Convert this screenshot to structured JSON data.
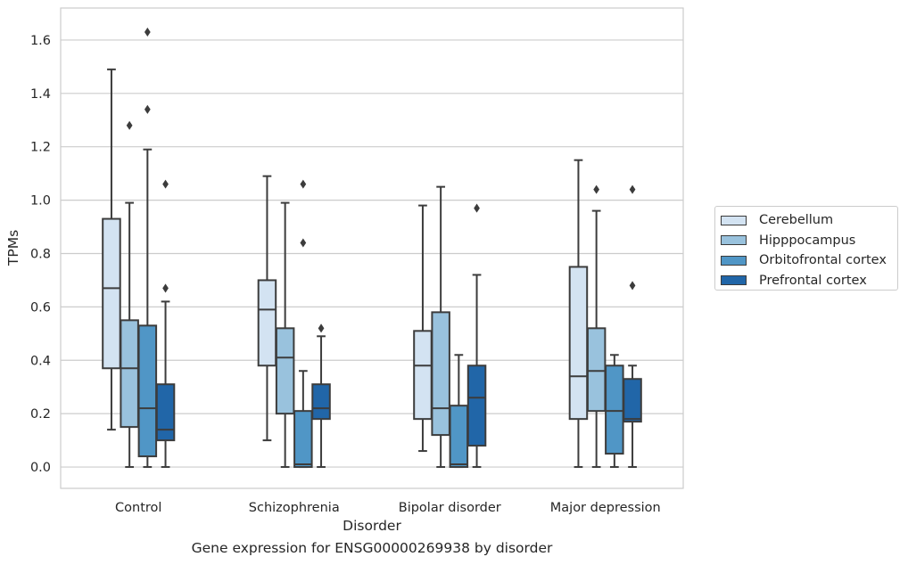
{
  "chart_data": {
    "type": "box",
    "xlabel": "Disorder",
    "ylabel": "TPMs",
    "ylim": [
      -0.08,
      1.72
    ],
    "yticks": [
      0.0,
      0.2,
      0.4,
      0.6,
      0.8,
      1.0,
      1.2,
      1.4,
      1.6
    ],
    "ytick_labels": [
      "0.0",
      "0.2",
      "0.4",
      "0.6",
      "0.8",
      "1.0",
      "1.2",
      "1.4",
      "1.6"
    ],
    "grid": "horizontal",
    "legend_position": "right",
    "categories": [
      "Control",
      "Schizophrenia",
      "Bipolar disorder",
      "Major depression"
    ],
    "series": [
      {
        "name": "Cerebellum",
        "color": "#d3e3f2",
        "boxes": [
          {
            "whislo": 0.14,
            "q1": 0.37,
            "med": 0.67,
            "q3": 0.93,
            "whishi": 1.49,
            "fliers": []
          },
          {
            "whislo": 0.1,
            "q1": 0.38,
            "med": 0.59,
            "q3": 0.7,
            "whishi": 1.09,
            "fliers": []
          },
          {
            "whislo": 0.06,
            "q1": 0.18,
            "med": 0.38,
            "q3": 0.51,
            "whishi": 0.98,
            "fliers": []
          },
          {
            "whislo": 0.0,
            "q1": 0.18,
            "med": 0.34,
            "q3": 0.75,
            "whishi": 1.15,
            "fliers": []
          }
        ]
      },
      {
        "name": "Hipppocampus",
        "color": "#99c2dd",
        "boxes": [
          {
            "whislo": 0.0,
            "q1": 0.15,
            "med": 0.37,
            "q3": 0.55,
            "whishi": 0.99,
            "fliers": [
              1.28
            ]
          },
          {
            "whislo": 0.0,
            "q1": 0.2,
            "med": 0.41,
            "q3": 0.52,
            "whishi": 0.99,
            "fliers": []
          },
          {
            "whislo": 0.0,
            "q1": 0.12,
            "med": 0.22,
            "q3": 0.58,
            "whishi": 1.05,
            "fliers": []
          },
          {
            "whislo": 0.0,
            "q1": 0.21,
            "med": 0.36,
            "q3": 0.52,
            "whishi": 0.96,
            "fliers": [
              1.04
            ]
          }
        ]
      },
      {
        "name": "Orbitofrontal cortex",
        "color": "#5096c6",
        "boxes": [
          {
            "whislo": 0.0,
            "q1": 0.04,
            "med": 0.22,
            "q3": 0.53,
            "whishi": 1.19,
            "fliers": [
              1.34,
              1.63
            ]
          },
          {
            "whislo": 0.0,
            "q1": 0.0,
            "med": 0.01,
            "q3": 0.21,
            "whishi": 0.36,
            "fliers": [
              0.84,
              1.06
            ]
          },
          {
            "whislo": 0.0,
            "q1": 0.0,
            "med": 0.01,
            "q3": 0.23,
            "whishi": 0.42,
            "fliers": []
          },
          {
            "whislo": 0.0,
            "q1": 0.05,
            "med": 0.21,
            "q3": 0.38,
            "whishi": 0.42,
            "fliers": []
          }
        ]
      },
      {
        "name": "Prefrontal cortex",
        "color": "#2166a8",
        "boxes": [
          {
            "whislo": 0.0,
            "q1": 0.1,
            "med": 0.14,
            "q3": 0.31,
            "whishi": 0.62,
            "fliers": [
              0.67,
              1.06
            ]
          },
          {
            "whislo": 0.0,
            "q1": 0.18,
            "med": 0.22,
            "q3": 0.31,
            "whishi": 0.49,
            "fliers": [
              0.52
            ]
          },
          {
            "whislo": 0.0,
            "q1": 0.08,
            "med": 0.26,
            "q3": 0.38,
            "whishi": 0.72,
            "fliers": [
              0.97
            ]
          },
          {
            "whislo": 0.0,
            "q1": 0.17,
            "med": 0.18,
            "q3": 0.33,
            "whishi": 0.38,
            "fliers": [
              0.68,
              1.04
            ]
          }
        ]
      }
    ]
  },
  "caption": "Gene expression for ENSG00000269938 by disorder"
}
